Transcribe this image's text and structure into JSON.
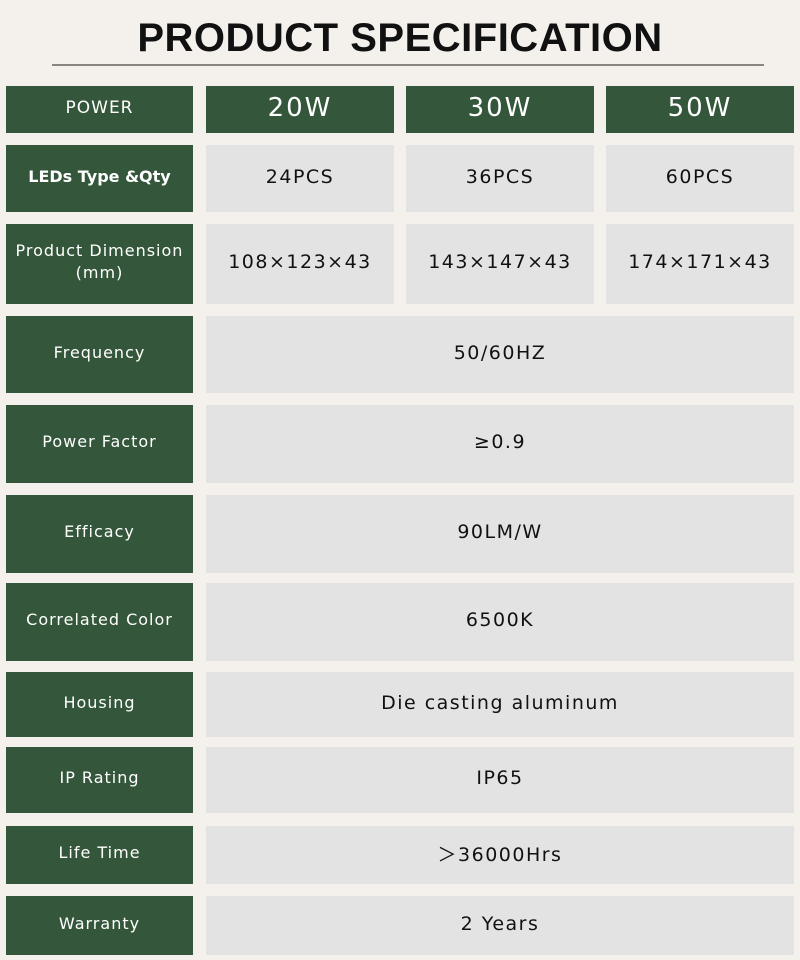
{
  "title": "PRODUCT SPECIFICATION",
  "colors": {
    "label_bg": "#34573b",
    "value_bg": "#e3e3e3",
    "page_bg": "#f4f1ed"
  },
  "header": {
    "label": "POWER",
    "models": [
      "20W",
      "30W",
      "50W"
    ]
  },
  "rows": [
    {
      "label": "LEDs Type &Qty",
      "values": [
        "24PCS",
        "36PCS",
        "60PCS"
      ]
    },
    {
      "label": "Product Dimension\n(mm)",
      "values": [
        "108×123×43",
        "143×147×43",
        "174×171×43"
      ]
    },
    {
      "label": "Frequency",
      "value": "50/60HZ"
    },
    {
      "label": "Power Factor",
      "value": "≥0.9"
    },
    {
      "label": "Efficacy",
      "value": "90LM/W"
    },
    {
      "label": "Correlated Color",
      "value": "6500K"
    },
    {
      "label": "Housing",
      "value": "Die casting aluminum"
    },
    {
      "label": "IP Rating",
      "value": "IP65"
    },
    {
      "label": "Life Time",
      "value": "＞36000Hrs"
    },
    {
      "label": "Warranty",
      "value": "2 Years"
    }
  ]
}
